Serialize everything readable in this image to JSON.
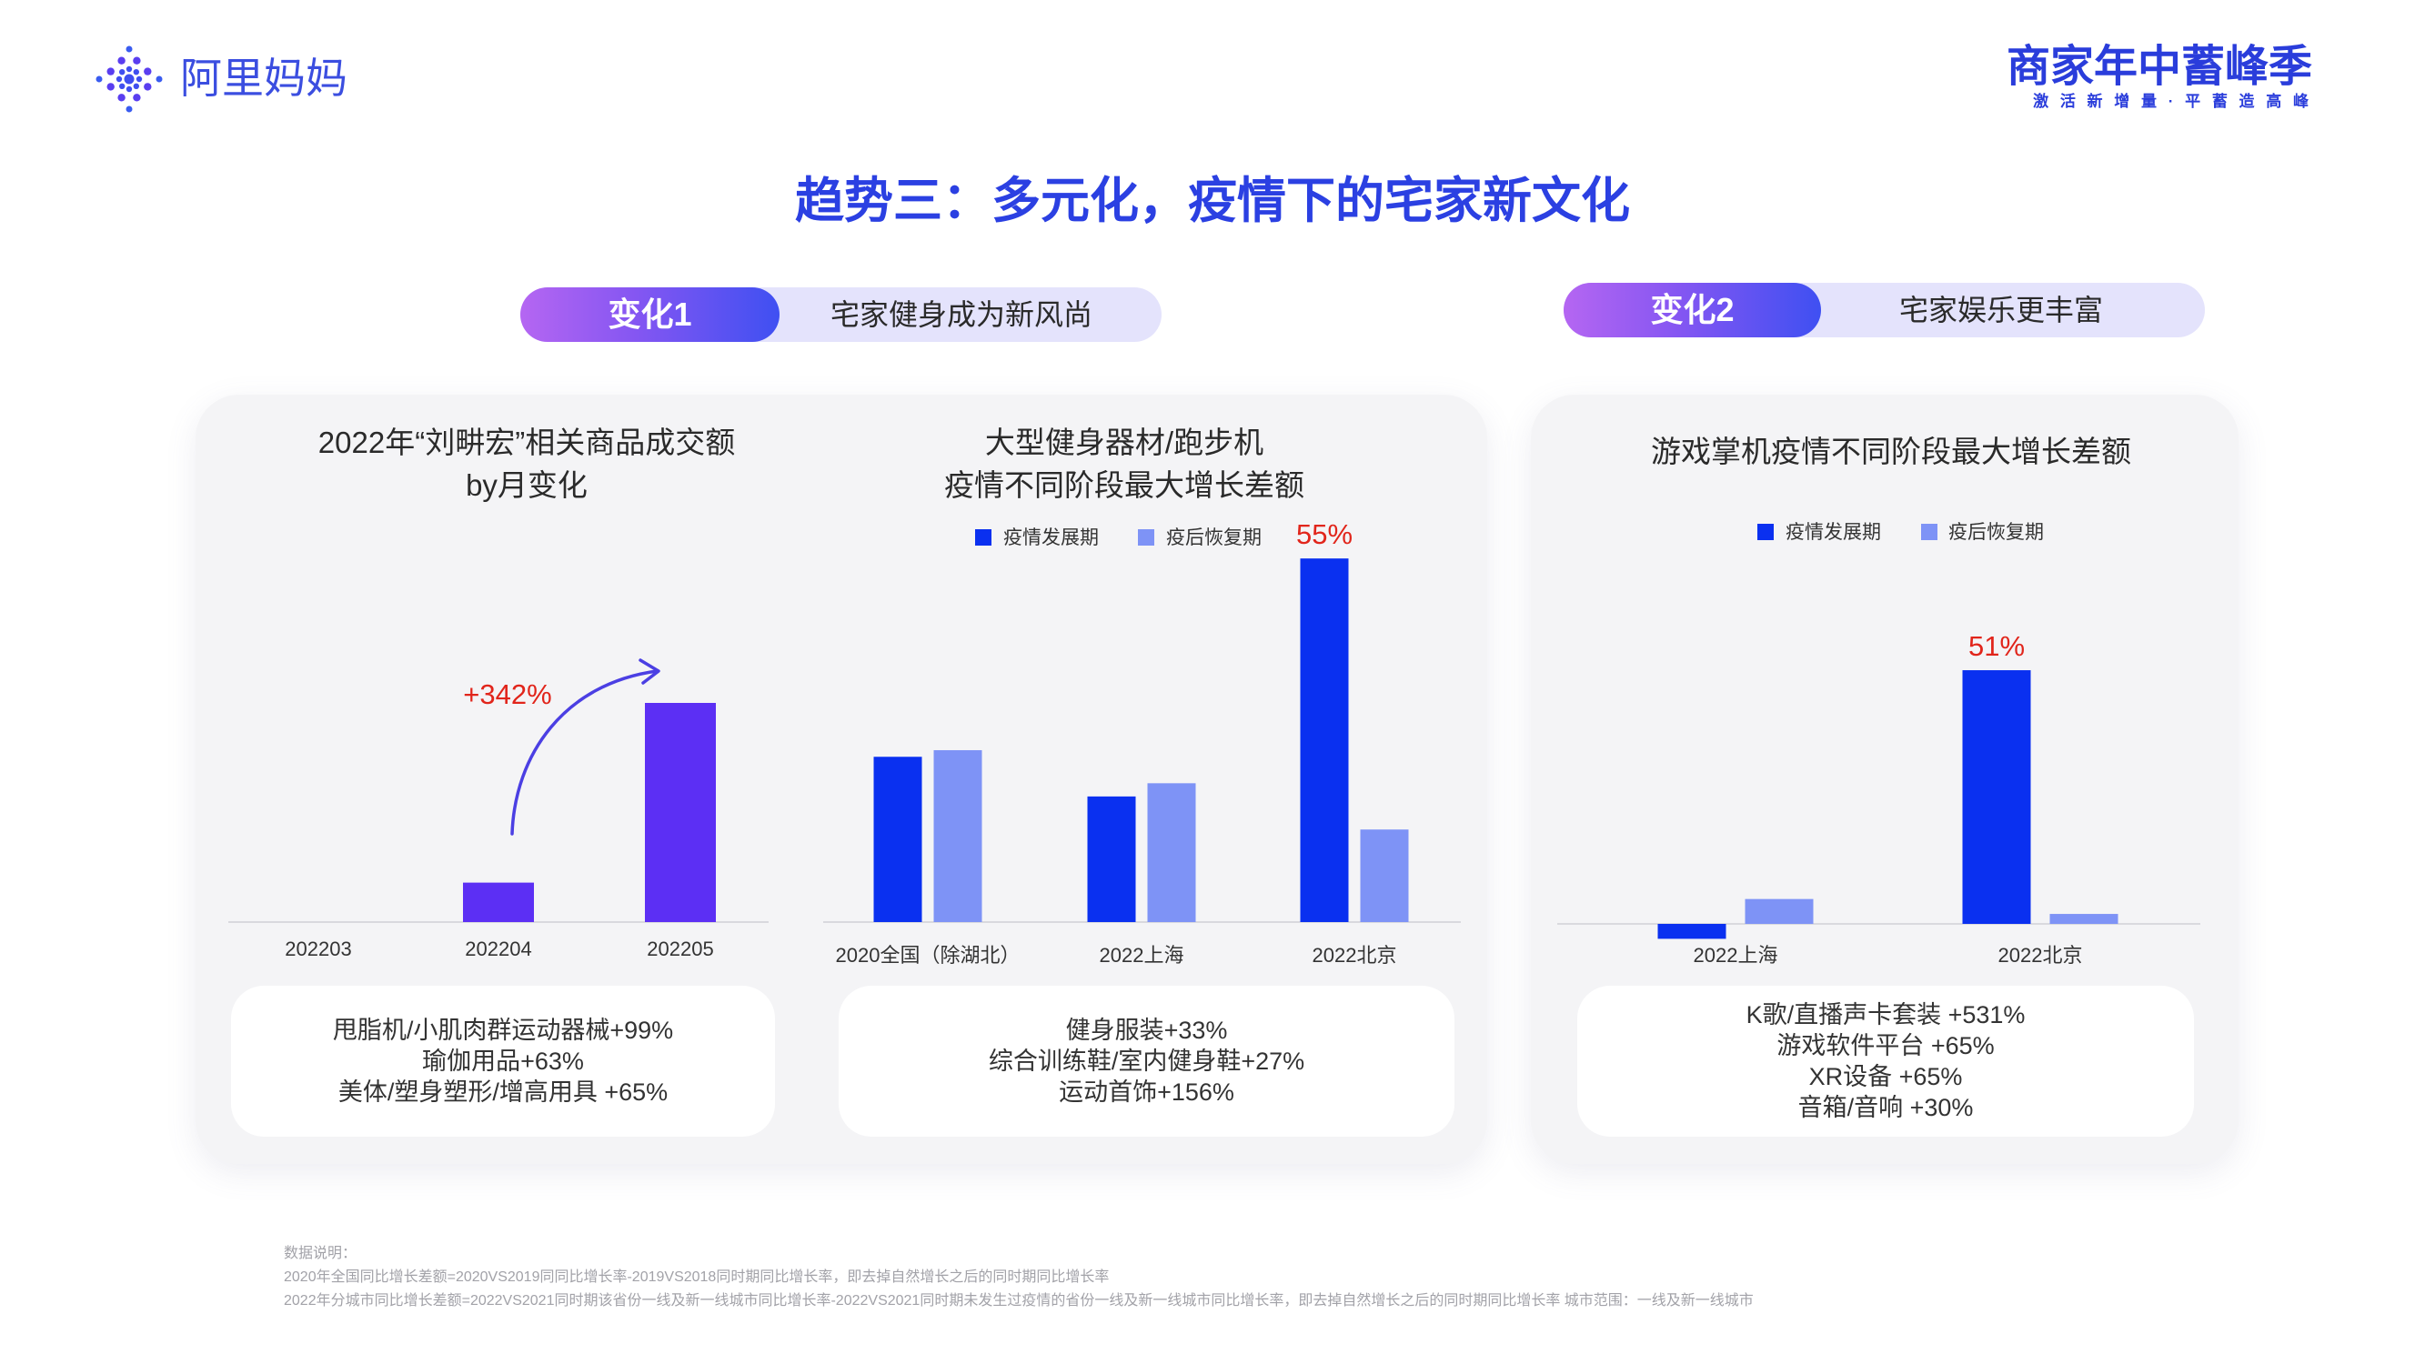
{
  "brand": {
    "logo_icon": "alimama-dots-icon",
    "logo_text": "阿里妈妈",
    "campaign_title": "商家年中蓄峰季",
    "campaign_slogan": "激 活 新 增 量 · 平 蓄 造 高 峰"
  },
  "title": "趋势三：多元化，疫情下的宅家新文化",
  "changes": [
    {
      "tag": "变化1",
      "text": "宅家健身成为新风尚"
    },
    {
      "tag": "变化2",
      "text": "宅家娱乐更丰富"
    }
  ],
  "colors": {
    "title_blue": "#2b40e2",
    "violet_bar": "#5c2ff4",
    "dark_blue": "#0a30f0",
    "light_blue": "#7e93f6",
    "highlight_red": "#e1251b",
    "arrow": "#4b3fe3",
    "card_bg": "#f4f4f6"
  },
  "chart_data": [
    {
      "type": "bar",
      "title": "2022年“刘畊宏”相关商品成交额",
      "subtitle": "by月变化",
      "categories": [
        "202203",
        "202204",
        "202205"
      ],
      "values": [
        0,
        0.18,
        1
      ],
      "color": "#5c2ff4",
      "annotation": "+342%"
    },
    {
      "type": "bar",
      "title": "大型健身器材/跑步机",
      "subtitle": "疫情不同阶段最大增长差额",
      "categories": [
        "2020全国（除湖北）",
        "2022上海",
        "2022北京"
      ],
      "series": [
        {
          "name": "疫情发展期",
          "values": [
            25,
            19,
            55
          ],
          "color": "#0a30f0"
        },
        {
          "name": "疫后恢复期",
          "values": [
            26,
            21,
            14
          ],
          "color": "#7e93f6"
        }
      ],
      "data_labels": [
        {
          "series": 0,
          "index": 2,
          "text": "55%"
        }
      ],
      "legend": "top-center"
    },
    {
      "type": "bar",
      "title": "游戏掌机疫情不同阶段最大增长差额",
      "categories": [
        "2022上海",
        "2022北京"
      ],
      "series": [
        {
          "name": "疫情发展期",
          "values": [
            -3,
            51
          ],
          "color": "#0a30f0"
        },
        {
          "name": "疫后恢复期",
          "values": [
            5,
            2
          ],
          "color": "#7e93f6"
        }
      ],
      "data_labels": [
        {
          "series": 0,
          "index": 1,
          "text": "51%"
        }
      ],
      "legend": "top-center"
    }
  ],
  "boxes": [
    {
      "lines": [
        "甩脂机/小肌肉群运动器械+99%",
        "瑜伽用品+63%",
        "美体/塑身塑形/增高用具 +65%"
      ]
    },
    {
      "lines": [
        "健身服装+33%",
        "综合训练鞋/室内健身鞋+27%",
        "运动首饰+156%"
      ]
    },
    {
      "lines": [
        "K歌/直播声卡套装 +531%",
        "游戏软件平台 +65%",
        "XR设备 +65%",
        "音箱/音响 +30%"
      ]
    }
  ],
  "footnotes": [
    "数据说明：",
    "2020年全国同比增长差额=2020VS2019同同比增长率-2019VS2018同时期同比增长率，即去掉自然增长之后的同时期同比增长率",
    "2022年分城市同比增长差额=2022VS2021同时期该省份一线及新一线城市同比增长率-2022VS2021同时期未发生过疫情的省份一线及新一线城市同比增长率，即去掉自然增长之后的同时期同比增长率 城市范围：一线及新一线城市"
  ]
}
